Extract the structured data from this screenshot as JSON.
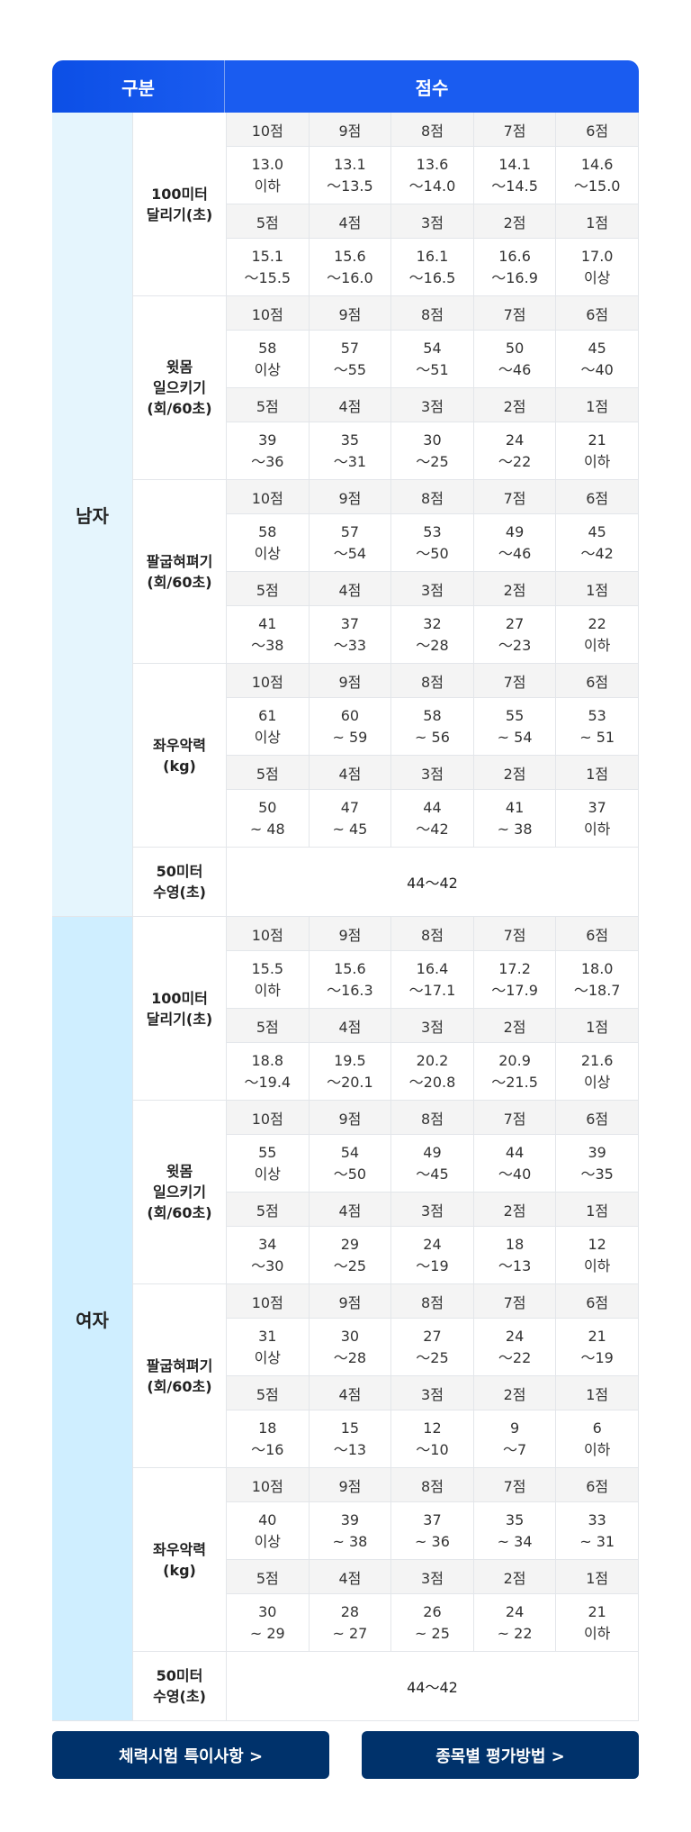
{
  "header": {
    "category": "구분",
    "score": "점수"
  },
  "genders": [
    {
      "label": "남자",
      "events": [
        {
          "name": "100미터\n달리기(초)",
          "row1_scores": [
            "10점",
            "9점",
            "8점",
            "7점",
            "6점"
          ],
          "row1_values": [
            "13.0\n이하",
            "13.1\n～13.5",
            "13.6\n～14.0",
            "14.1\n～14.5",
            "14.6\n～15.0"
          ],
          "row2_scores": [
            "5점",
            "4점",
            "3점",
            "2점",
            "1점"
          ],
          "row2_values": [
            "15.1\n～15.5",
            "15.6\n～16.0",
            "16.1\n～16.5",
            "16.6\n～16.9",
            "17.0\n이상"
          ]
        },
        {
          "name": "윗몸\n일으키기\n(회/60초)",
          "row1_scores": [
            "10점",
            "9점",
            "8점",
            "7점",
            "6점"
          ],
          "row1_values": [
            "58\n이상",
            "57\n～55",
            "54\n～51",
            "50\n～46",
            "45\n～40"
          ],
          "row2_scores": [
            "5점",
            "4점",
            "3점",
            "2점",
            "1점"
          ],
          "row2_values": [
            "39\n～36",
            "35\n～31",
            "30\n～25",
            "24\n～22",
            "21\n이하"
          ]
        },
        {
          "name": "팔굽혀펴기\n(회/60초)",
          "row1_scores": [
            "10점",
            "9점",
            "8점",
            "7점",
            "6점"
          ],
          "row1_values": [
            "58\n이상",
            "57\n～54",
            "53\n～50",
            "49\n～46",
            "45\n～42"
          ],
          "row2_scores": [
            "5점",
            "4점",
            "3점",
            "2점",
            "1점"
          ],
          "row2_values": [
            "41\n～38",
            "37\n～33",
            "32\n～28",
            "27\n～23",
            "22\n이하"
          ]
        },
        {
          "name": "좌우악력\n(kg)",
          "row1_scores": [
            "10점",
            "9점",
            "8점",
            "7점",
            "6점"
          ],
          "row1_values": [
            "61\n이상",
            "60\n~ 59",
            "58\n~ 56",
            "55\n~ 54",
            "53\n~ 51"
          ],
          "row2_scores": [
            "5점",
            "4점",
            "3점",
            "2점",
            "1점"
          ],
          "row2_values": [
            "50\n~ 48",
            "47\n~ 45",
            "44\n～42",
            "41\n~ 38",
            "37\n이하"
          ]
        }
      ],
      "swim": {
        "name": "50미터\n수영(초)",
        "value": "44～42"
      }
    },
    {
      "label": "여자",
      "events": [
        {
          "name": "100미터\n달리기(초)",
          "row1_scores": [
            "10점",
            "9점",
            "8점",
            "7점",
            "6점"
          ],
          "row1_values": [
            "15.5\n이하",
            "15.6\n～16.3",
            "16.4\n～17.1",
            "17.2\n～17.9",
            "18.0\n～18.7"
          ],
          "row2_scores": [
            "5점",
            "4점",
            "3점",
            "2점",
            "1점"
          ],
          "row2_values": [
            "18.8\n～19.4",
            "19.5\n～20.1",
            "20.2\n～20.8",
            "20.9\n～21.5",
            "21.6\n이상"
          ]
        },
        {
          "name": "윗몸\n일으키기\n(회/60초)",
          "row1_scores": [
            "10점",
            "9점",
            "8점",
            "7점",
            "6점"
          ],
          "row1_values": [
            "55\n이상",
            "54\n～50",
            "49\n～45",
            "44\n～40",
            "39\n～35"
          ],
          "row2_scores": [
            "5점",
            "4점",
            "3점",
            "2점",
            "1점"
          ],
          "row2_values": [
            "34\n～30",
            "29\n～25",
            "24\n～19",
            "18\n～13",
            "12\n이하"
          ]
        },
        {
          "name": "팔굽혀펴기\n(회/60초)",
          "row1_scores": [
            "10점",
            "9점",
            "8점",
            "7점",
            "6점"
          ],
          "row1_values": [
            "31\n이상",
            "30\n～28",
            "27\n～25",
            "24\n～22",
            "21\n～19"
          ],
          "row2_scores": [
            "5점",
            "4점",
            "3점",
            "2점",
            "1점"
          ],
          "row2_values": [
            "18\n～16",
            "15\n～13",
            "12\n～10",
            "9\n～7",
            "6\n이하"
          ]
        },
        {
          "name": "좌우악력\n(kg)",
          "row1_scores": [
            "10점",
            "9점",
            "8점",
            "7점",
            "6점"
          ],
          "row1_values": [
            "40\n이상",
            "39\n~ 38",
            "37\n~ 36",
            "35\n~ 34",
            "33\n~ 31"
          ],
          "row2_scores": [
            "5점",
            "4점",
            "3점",
            "2점",
            "1점"
          ],
          "row2_values": [
            "30\n~ 29",
            "28\n~ 27",
            "26\n~ 25",
            "24\n~ 22",
            "21\n이하"
          ]
        }
      ],
      "swim": {
        "name": "50미터\n수영(초)",
        "value": "44～42"
      }
    }
  ],
  "buttons": {
    "special_notes": "체력시험 특이사항 >",
    "evaluation_method": "종목별 평가방법 >"
  }
}
